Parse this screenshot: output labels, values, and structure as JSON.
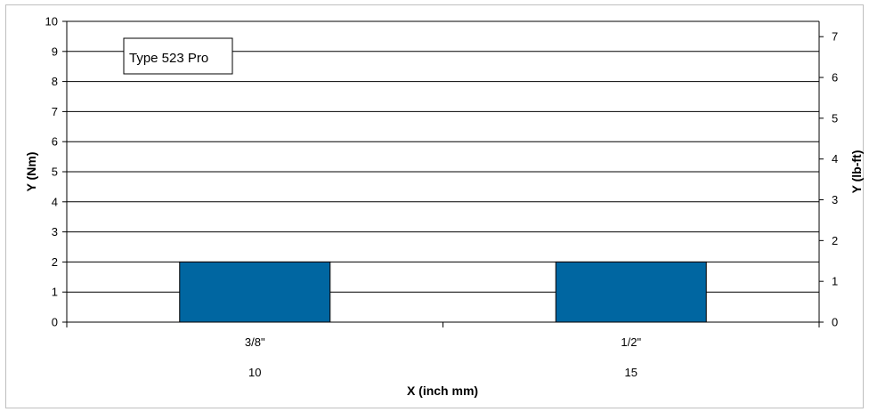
{
  "chart_data": {
    "type": "bar",
    "categories": [
      "3/8\"",
      "1/2\""
    ],
    "categories_secondary": [
      "10",
      "15"
    ],
    "series": [
      {
        "name": "Type 523 Pro",
        "values": [
          2,
          2
        ],
        "color": "#0066a1"
      }
    ],
    "xlabel": "X (inch mm)",
    "ylabel": "Y (Nm)",
    "y2label": "Y (lb-ft)",
    "ylim": [
      0,
      10
    ],
    "yticks": [
      "0",
      "1",
      "2",
      "3",
      "4",
      "5",
      "6",
      "7",
      "8",
      "9",
      "10"
    ],
    "y2lim": [
      0,
      7.3756
    ],
    "y2ticks": [
      "0",
      "1",
      "2",
      "3",
      "4",
      "5",
      "6",
      "7"
    ],
    "grid": true,
    "legend_position": "top-left",
    "gridline_color": "#000000",
    "bar_edge_color": "#000000"
  }
}
